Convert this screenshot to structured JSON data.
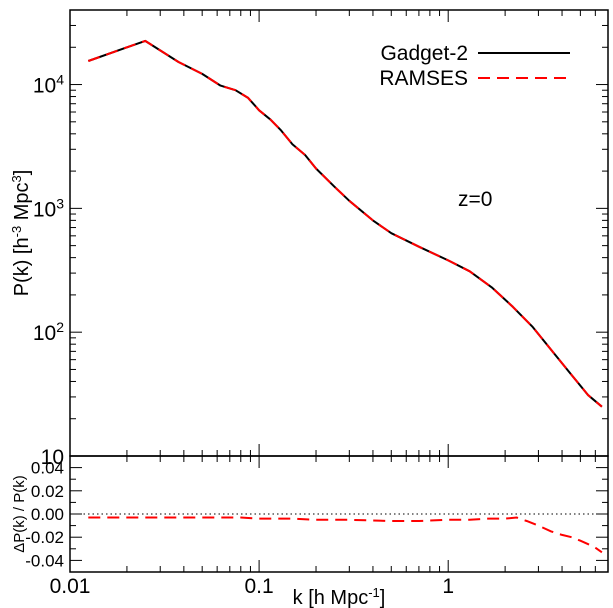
{
  "chart_data": [
    {
      "type": "line",
      "panel": "main",
      "xscale": "log",
      "yscale": "log",
      "xlim": [
        0.01,
        7.0
      ],
      "ylim": [
        10,
        40000
      ],
      "ylabel": {
        "main": "P(k) [h",
        "sup1": "-3",
        "mid": " Mpc",
        "sup2": "3",
        "end": "]"
      },
      "yticks": [
        {
          "value": 10,
          "base": "10",
          "exp": ""
        },
        {
          "value": 100,
          "base": "10",
          "exp": "2"
        },
        {
          "value": 1000,
          "base": "10",
          "exp": "3"
        },
        {
          "value": 10000,
          "base": "10",
          "exp": "4"
        }
      ],
      "annotation": "z=0",
      "legend_position": "top-right",
      "series": [
        {
          "name": "Gadget-2",
          "color": "#000000",
          "dash": "solid",
          "x": [
            0.0125,
            0.025,
            0.0375,
            0.05,
            0.0625,
            0.075,
            0.0875,
            0.1,
            0.115,
            0.13,
            0.15,
            0.175,
            0.2,
            0.25,
            0.3,
            0.4,
            0.5,
            0.7,
            1.0,
            1.3,
            1.7,
            2.2,
            2.8,
            3.5,
            4.5,
            5.5,
            6.5
          ],
          "y": [
            15500,
            22500,
            15200,
            12200,
            9800,
            9000,
            7800,
            6200,
            5200,
            4300,
            3300,
            2700,
            2100,
            1500,
            1150,
            800,
            630,
            490,
            380,
            310,
            230,
            160,
            110,
            72,
            45,
            31,
            25
          ]
        },
        {
          "name": "RAMSES",
          "color": "#ff0000",
          "dash": "dashed",
          "x": [
            0.0125,
            0.025,
            0.0375,
            0.05,
            0.0625,
            0.075,
            0.0875,
            0.1,
            0.115,
            0.13,
            0.15,
            0.175,
            0.2,
            0.25,
            0.3,
            0.4,
            0.5,
            0.7,
            1.0,
            1.3,
            1.7,
            2.2,
            2.8,
            3.5,
            4.5,
            5.5,
            6.5
          ],
          "y": [
            15500,
            22500,
            15200,
            12200,
            9800,
            9000,
            7800,
            6200,
            5200,
            4300,
            3300,
            2700,
            2100,
            1500,
            1150,
            800,
            630,
            490,
            380,
            310,
            230,
            160,
            110,
            72,
            45,
            31,
            25
          ]
        }
      ]
    },
    {
      "type": "line",
      "panel": "residual",
      "xscale": "log",
      "xlim": [
        0.01,
        7.0
      ],
      "ylim": [
        -0.05,
        0.05
      ],
      "xlabel": {
        "main": "k [h Mpc",
        "sup": "-1",
        "end": "]"
      },
      "ylabel": "ΔP(k) / P(k)",
      "xtick_labels": [
        {
          "value": 0.01,
          "label": "0.01"
        },
        {
          "value": 0.1,
          "label": "0.1"
        },
        {
          "value": 1,
          "label": "1"
        }
      ],
      "ytick_labels": [
        {
          "value": 0.04,
          "label": "0.04"
        },
        {
          "value": 0.02,
          "label": "0.02"
        },
        {
          "value": 0.0,
          "label": "0.00"
        },
        {
          "value": -0.02,
          "label": "-0.02"
        },
        {
          "value": -0.04,
          "label": "-0.04"
        }
      ],
      "reference_line": {
        "y": 0.0,
        "style": "dotted"
      },
      "series": [
        {
          "name": "RAMSES",
          "color": "#ff0000",
          "dash": "dashed",
          "x": [
            0.0125,
            0.02,
            0.03,
            0.05,
            0.08,
            0.1,
            0.15,
            0.2,
            0.3,
            0.5,
            0.7,
            1.0,
            1.3,
            1.6,
            2.0,
            2.3,
            2.6,
            3.0,
            3.5,
            4.0,
            4.5,
            5.0,
            5.5,
            6.0,
            6.5
          ],
          "y": [
            -0.003,
            -0.003,
            -0.003,
            -0.003,
            -0.003,
            -0.004,
            -0.004,
            -0.005,
            -0.005,
            -0.006,
            -0.006,
            -0.005,
            -0.005,
            -0.004,
            -0.004,
            -0.003,
            -0.006,
            -0.01,
            -0.015,
            -0.018,
            -0.02,
            -0.023,
            -0.026,
            -0.029,
            -0.033
          ]
        }
      ]
    }
  ]
}
